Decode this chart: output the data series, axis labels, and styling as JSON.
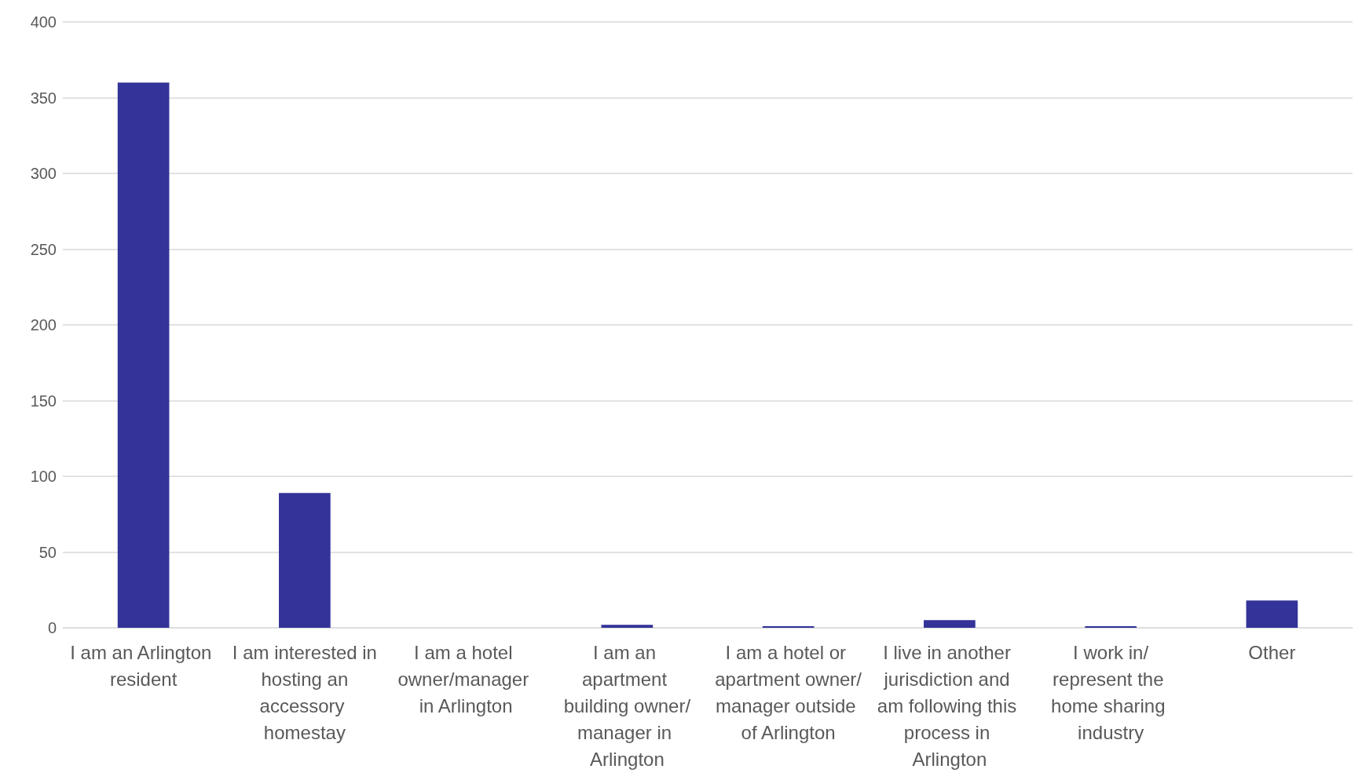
{
  "chart_data": {
    "type": "bar",
    "categories": [
      "I am an Arlington resident",
      "I am interested in hosting an accessory homestay",
      "I am a hotel owner/manager in Arlington",
      "I am an apartment building owner/manager in Arlington",
      "I am a hotel or apartment owner/manager outside of Arlington",
      "I live in another jurisdiction and am following this process in Arlington",
      "I work in/represent the home sharing industry",
      "Other"
    ],
    "values": [
      360,
      89,
      0,
      2,
      1,
      5,
      1,
      18
    ],
    "color": "#333399",
    "ylim": [
      0,
      400
    ],
    "yticks": [
      0,
      50,
      100,
      150,
      200,
      250,
      300,
      350,
      400
    ],
    "grid": "y"
  }
}
